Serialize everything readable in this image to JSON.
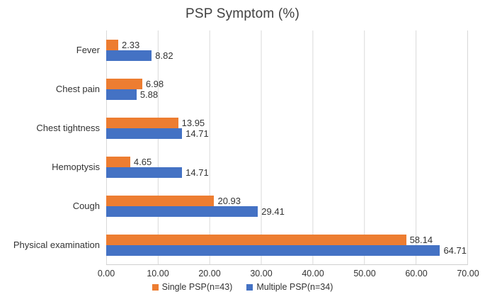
{
  "title": "PSP Symptom (%)",
  "colors": {
    "single_psp": "#ED7D31",
    "multiple_psp": "#4472C4",
    "gridline": "#D9D9D9",
    "text": "#333333"
  },
  "chart_data": {
    "type": "bar",
    "orientation": "horizontal",
    "title": "PSP Symptom (%)",
    "categories": [
      "Fever",
      "Chest pain",
      "Chest tightness",
      "Hemoptysis",
      "Cough",
      "Physical examination"
    ],
    "series": [
      {
        "name": "Single PSP(n=43)",
        "color": "#ED7D31",
        "values": [
          2.33,
          6.98,
          13.95,
          4.65,
          20.93,
          58.14
        ]
      },
      {
        "name": "Multiple PSP(n=34)",
        "color": "#4472C4",
        "values": [
          8.82,
          5.88,
          14.71,
          14.71,
          29.41,
          64.71
        ]
      }
    ],
    "xlabel": "",
    "ylabel": "",
    "xlim": [
      0,
      70
    ],
    "x_ticks": [
      "0.00",
      "10.00",
      "20.00",
      "30.00",
      "40.00",
      "50.00",
      "60.00",
      "70.00"
    ],
    "grid": "vertical",
    "value_labels": true,
    "legend_position": "bottom"
  },
  "legend": {
    "single_label": "Single PSP(n=43)",
    "multiple_label": "Multiple PSP(n=34)"
  }
}
